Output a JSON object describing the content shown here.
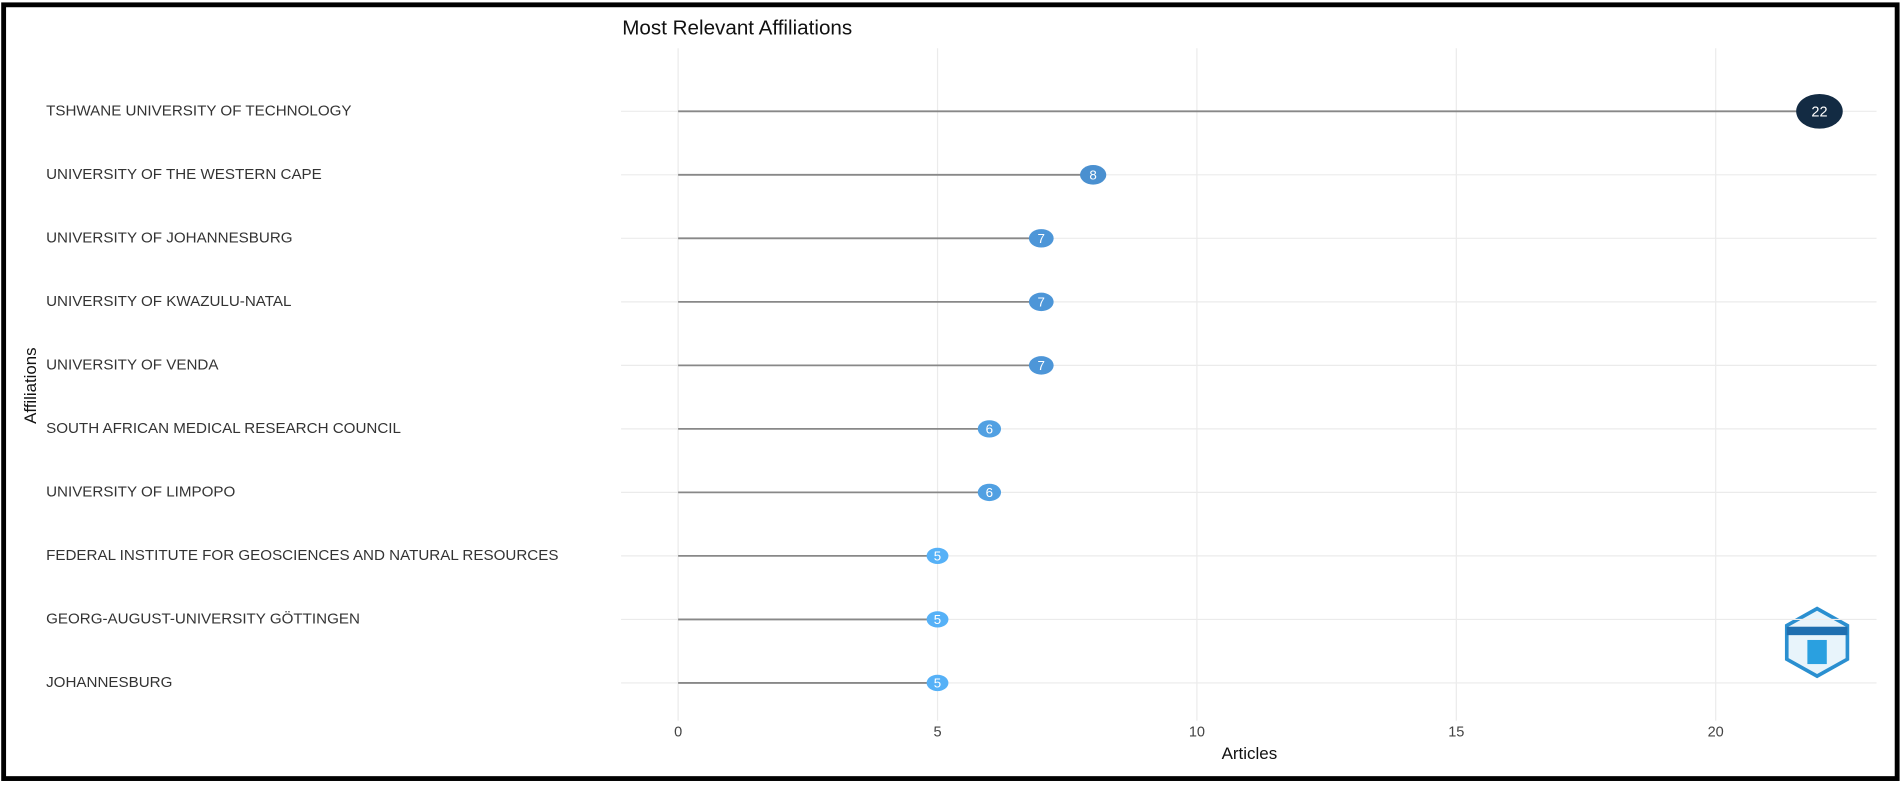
{
  "chart_data": {
    "type": "lollipop",
    "title": "Most Relevant Affiliations",
    "x_label": "Articles",
    "y_label": "Affiliations",
    "categories": [
      "TSHWANE UNIVERSITY OF TECHNOLOGY",
      "UNIVERSITY OF THE WESTERN CAPE",
      "UNIVERSITY OF JOHANNESBURG",
      "UNIVERSITY OF KWAZULU-NATAL",
      "UNIVERSITY OF VENDA",
      "SOUTH AFRICAN MEDICAL RESEARCH COUNCIL",
      "UNIVERSITY OF LIMPOPO",
      "FEDERAL INSTITUTE FOR GEOSCIENCES AND NATURAL RESOURCES",
      "GEORG-AUGUST-UNIVERSITY GÖTTINGEN",
      "JOHANNESBURG"
    ],
    "values": [
      22,
      8,
      7,
      7,
      7,
      6,
      6,
      5,
      5,
      5
    ],
    "colors": [
      "#132b43",
      "#4a90d0",
      "#4d96d8",
      "#4d96d8",
      "#4d96d8",
      "#51a0e2",
      "#51a0e2",
      "#56b1f7",
      "#56b1f7",
      "#56b1f7"
    ],
    "xlim": [
      -1.1,
      23.1
    ],
    "xticks": [
      0,
      5,
      10,
      15,
      20
    ],
    "grid": true
  }
}
